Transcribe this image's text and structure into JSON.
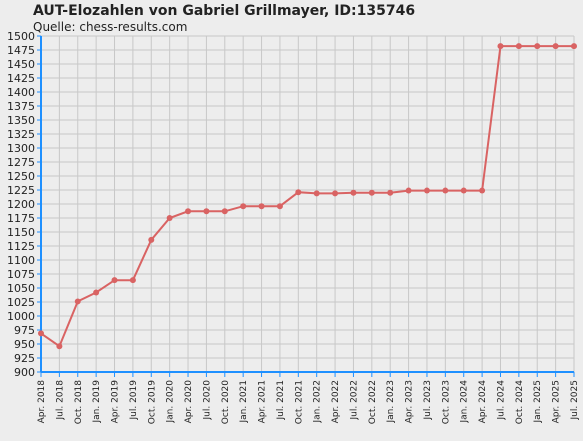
{
  "chart_data": {
    "type": "line",
    "title": "AUT-Elozahlen von Gabriel Grillmayer, ID:135746",
    "subtitle": "Quelle: chess-results.com",
    "xlabel": "",
    "ylabel": "",
    "ylim": [
      900,
      1500
    ],
    "y_ticks": [
      900,
      925,
      950,
      975,
      1000,
      1025,
      1050,
      1075,
      1100,
      1125,
      1150,
      1175,
      1200,
      1225,
      1250,
      1275,
      1300,
      1325,
      1350,
      1375,
      1400,
      1425,
      1450,
      1475,
      1500
    ],
    "categories": [
      "Apr. 2018",
      "Jul. 2018",
      "Oct. 2018",
      "Jan. 2019",
      "Apr. 2019",
      "Jul. 2019",
      "Oct. 2019",
      "Jan. 2020",
      "Apr. 2020",
      "Jul. 2020",
      "Oct. 2020",
      "Jan. 2021",
      "Apr. 2021",
      "Jul. 2021",
      "Oct. 2021",
      "Jan. 2022",
      "Apr. 2022",
      "Jul. 2022",
      "Oct. 2022",
      "Jan. 2023",
      "Apr. 2023",
      "Jul. 2023",
      "Oct. 2023",
      "Jan. 2024",
      "Apr. 2024",
      "Jul. 2024",
      "Oct. 2024",
      "Jan. 2025",
      "Apr. 2025",
      "Jul. 2025"
    ],
    "series": [
      {
        "values": [
          969,
          946,
          1026,
          1042,
          1064,
          1064,
          1136,
          1175,
          1187,
          1187,
          1187,
          1196,
          1196,
          1196,
          1221,
          1219,
          1219,
          1220,
          1220,
          1220,
          1224,
          1224,
          1224,
          1224,
          1224,
          1482,
          1482,
          1482,
          1482,
          1482
        ],
        "color": "#d96363"
      }
    ],
    "grid": true,
    "colors": {
      "axis": "#1e90ff",
      "grid": "#c8c8c8",
      "background": "#ededed"
    }
  }
}
